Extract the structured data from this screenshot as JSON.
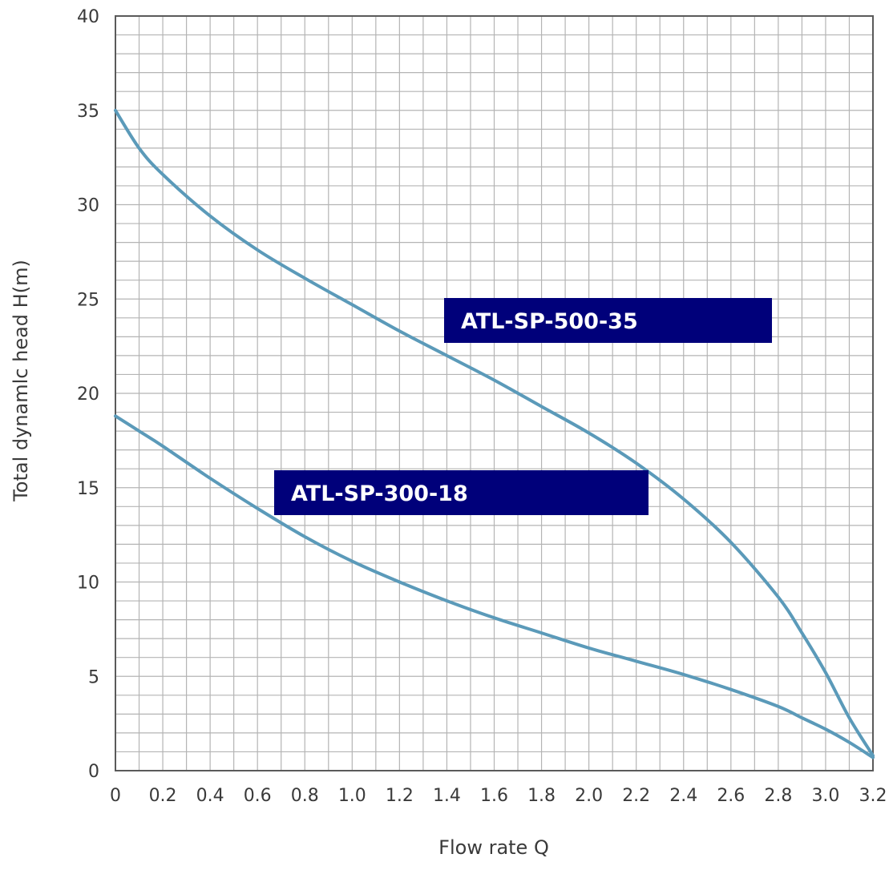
{
  "chart_data": {
    "type": "line",
    "title": "",
    "xlabel": "Flow rate Q",
    "ylabel": "Total dynamlc head H(m)",
    "xlim": [
      0,
      3.2
    ],
    "ylim": [
      0,
      40
    ],
    "x_ticks": [
      "0",
      "0.2",
      "0.4",
      "0.6",
      "0.8",
      "1.0",
      "1.2",
      "1.4",
      "1.6",
      "1.8",
      "2.0",
      "2.2",
      "2.4",
      "2.6",
      "2.8",
      "3.0",
      "3.2"
    ],
    "y_ticks": [
      "0",
      "5",
      "10",
      "15",
      "20",
      "25",
      "30",
      "35",
      "40"
    ],
    "grid": true,
    "minor_grid": {
      "x_step": 0.1,
      "y_step": 1
    },
    "line_color": "#5b9ab9",
    "badge_color": "#00007a",
    "series": [
      {
        "name": "ATL-SP-500-35",
        "x": [
          0,
          0.1,
          0.2,
          0.4,
          0.6,
          0.8,
          1.0,
          1.2,
          1.4,
          1.6,
          1.8,
          2.0,
          2.2,
          2.4,
          2.6,
          2.8,
          2.9,
          3.0,
          3.1,
          3.2
        ],
        "y": [
          35,
          33.0,
          31.6,
          29.4,
          27.6,
          26.1,
          24.7,
          23.3,
          22.0,
          20.7,
          19.3,
          17.9,
          16.3,
          14.4,
          12.1,
          9.2,
          7.3,
          5.2,
          2.8,
          0.8
        ]
      },
      {
        "name": "ATL-SP-300-18",
        "x": [
          0,
          0.1,
          0.2,
          0.4,
          0.6,
          0.8,
          1.0,
          1.2,
          1.4,
          1.6,
          1.8,
          2.0,
          2.2,
          2.4,
          2.6,
          2.8,
          2.9,
          3.0,
          3.1,
          3.2
        ],
        "y": [
          18.8,
          18.0,
          17.2,
          15.5,
          13.9,
          12.4,
          11.1,
          10.0,
          9.0,
          8.1,
          7.3,
          6.5,
          5.8,
          5.1,
          4.3,
          3.4,
          2.8,
          2.2,
          1.5,
          0.7
        ]
      }
    ],
    "annotations": [
      {
        "text": "ATL-SP-500-35",
        "series": 0
      },
      {
        "text": "ATL-SP-300-18",
        "series": 1
      }
    ]
  }
}
